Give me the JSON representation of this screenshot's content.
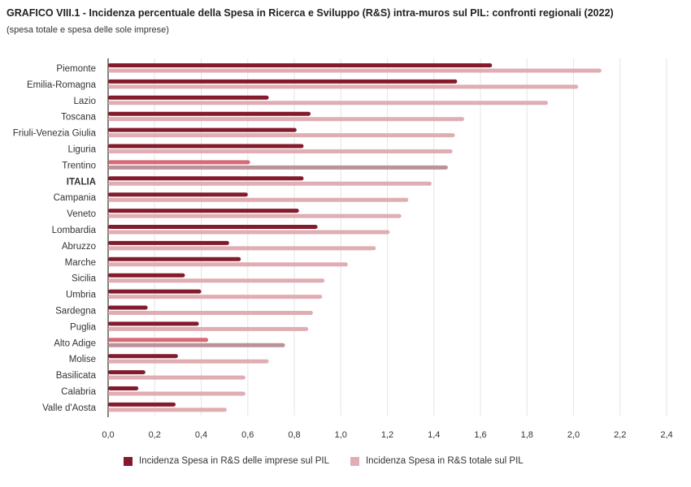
{
  "chart_data": {
    "type": "bar",
    "orientation": "horizontal",
    "title": "GRAFICO VIII.1 - Incidenza percentuale della Spesa in Ricerca e Sviluppo (R&S) intra-muros sul PIL: confronti regionali (2022)",
    "subtitle": "(spesa totale e spesa delle sole imprese)",
    "categories": [
      "Piemonte",
      "Emilia-Romagna",
      "Lazio",
      "Toscana",
      "Friuli-Venezia Giulia",
      "Liguria",
      "Trentino",
      "ITALIA",
      "Campania",
      "Veneto",
      "Lombardia",
      "Abruzzo",
      "Marche",
      "Sicilia",
      "Umbria",
      "Sardegna",
      "Puglia",
      "Alto Adige",
      "Molise",
      "Basilicata",
      "Calabria",
      "Valle d'Aosta"
    ],
    "bold_category": "ITALIA",
    "series": [
      {
        "name": "Incidenza Spesa in R&S delle imprese sul PIL",
        "color": "#841b2d",
        "highlight_color": "#d86a78",
        "values": [
          1.65,
          1.5,
          0.69,
          0.87,
          0.81,
          0.84,
          0.61,
          0.84,
          0.6,
          0.82,
          0.9,
          0.52,
          0.57,
          0.33,
          0.4,
          0.17,
          0.39,
          0.43,
          0.3,
          0.16,
          0.13,
          0.29
        ]
      },
      {
        "name": "Incidenza Spesa in R&S totale sul PIL",
        "color": "#e0adb3",
        "highlight_color": "#bb9298",
        "values": [
          2.12,
          2.02,
          1.89,
          1.53,
          1.49,
          1.48,
          1.46,
          1.39,
          1.29,
          1.26,
          1.21,
          1.15,
          1.03,
          0.93,
          0.92,
          0.88,
          0.86,
          0.76,
          0.69,
          0.59,
          0.59,
          0.51
        ]
      }
    ],
    "highlighted_categories": [
      "Trentino",
      "Alto Adige"
    ],
    "xlim": [
      0,
      2.4
    ],
    "xticks": [
      "0,0",
      "0,2",
      "0,4",
      "0,6",
      "0,8",
      "1,0",
      "1,2",
      "1,4",
      "1,6",
      "1,8",
      "2,0",
      "2,2",
      "2,4"
    ],
    "grid": true,
    "legend_position": "bottom"
  }
}
